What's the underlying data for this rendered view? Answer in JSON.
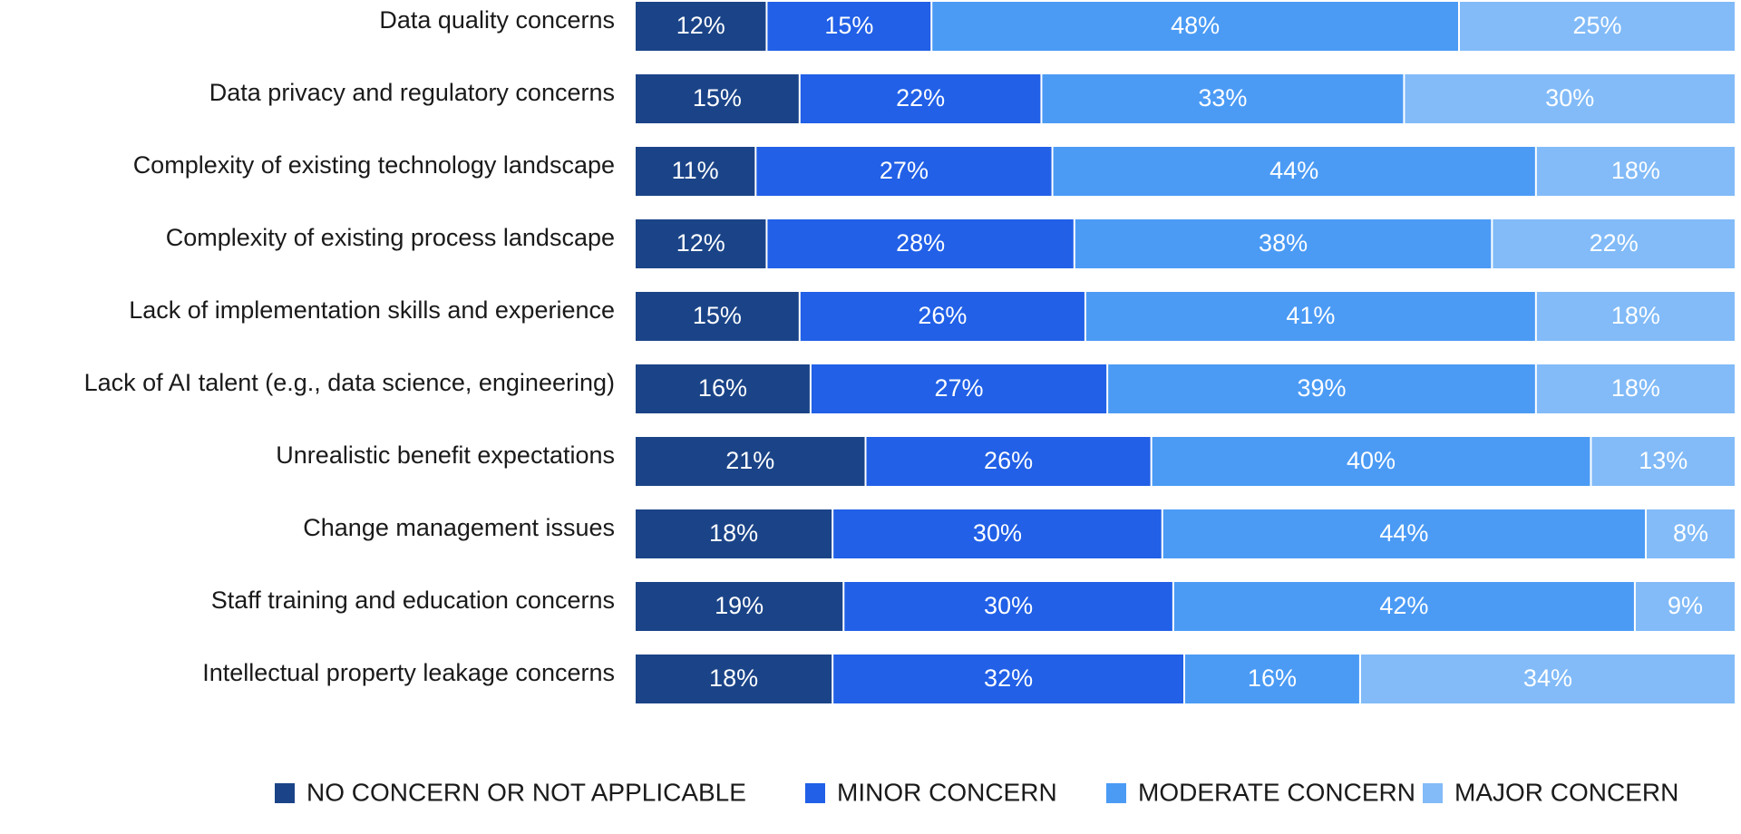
{
  "chart_data": {
    "type": "bar",
    "orientation": "horizontal",
    "stacked": true,
    "normalized": true,
    "title": "",
    "xlabel": "",
    "ylabel": "",
    "xlim": [
      0,
      100
    ],
    "grid": false,
    "value_format": "{v}%",
    "legend_placement": "bottom",
    "categories": [
      "Data quality concerns",
      "Data privacy and regulatory concerns",
      "Complexity of existing technology landscape",
      "Complexity of existing process landscape",
      "Lack of implementation skills and experience",
      "Lack of AI talent (e.g., data science, engineering)",
      "Unrealistic benefit expectations",
      "Change management issues",
      "Staff training and education concerns",
      "Intellectual property leakage concerns"
    ],
    "series": [
      {
        "name": "NO CONCERN OR NOT APPLICABLE",
        "color": "#1b4488",
        "values": [
          12,
          15,
          11,
          12,
          15,
          16,
          21,
          18,
          19,
          18
        ]
      },
      {
        "name": "MINOR CONCERN",
        "color": "#2160e7",
        "values": [
          15,
          22,
          27,
          28,
          26,
          27,
          26,
          30,
          30,
          32
        ]
      },
      {
        "name": "MODERATE CONCERN",
        "color": "#4b9bf5",
        "values": [
          48,
          33,
          44,
          38,
          41,
          39,
          40,
          44,
          42,
          16
        ]
      },
      {
        "name": "MAJOR CONCERN",
        "color": "#82bbf8",
        "values": [
          25,
          30,
          18,
          22,
          18,
          18,
          13,
          8,
          9,
          34
        ]
      }
    ]
  }
}
